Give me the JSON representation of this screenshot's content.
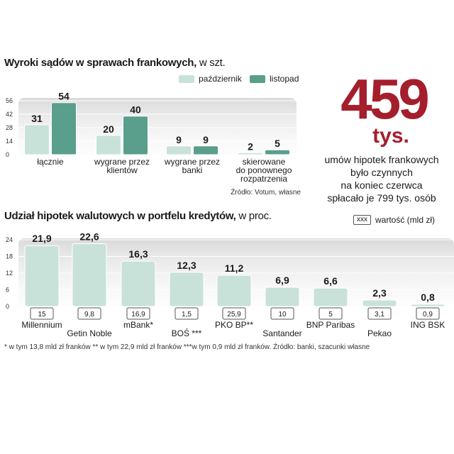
{
  "chart_data": [
    {
      "type": "bar",
      "title": "Wyroki sądów w sprawach frankowych,",
      "unit": "w szt.",
      "categories": [
        [
          "łącznie"
        ],
        [
          "wygrane przez",
          "klientów"
        ],
        [
          "wygrane przez",
          "banki"
        ],
        [
          "skierowane",
          "do ponownego",
          "rozpatrzenia"
        ]
      ],
      "series": [
        {
          "name": "październik",
          "values": [
            31,
            20,
            9,
            2
          ]
        },
        {
          "name": "listopad",
          "values": [
            54,
            40,
            9,
            5
          ]
        }
      ],
      "yticks": [
        0,
        14,
        28,
        42,
        56
      ],
      "ylim": [
        0,
        56
      ],
      "source": "Źródło: Votum, własne",
      "colors": {
        "październik": "#c9e2d9",
        "listopad": "#5a9e8c"
      }
    },
    {
      "type": "bar",
      "title": "Udział hipotek walutowych w portfelu kredytów,",
      "unit": "w proc.",
      "categories": [
        "Millennium",
        "Getin Noble",
        "mBank*",
        "BOŚ ***",
        "PKO BP**",
        "Santander",
        "BNP Paribas",
        "Pekao",
        "ING BSK"
      ],
      "values": [
        21.9,
        22.6,
        16.3,
        12.3,
        11.2,
        6.9,
        6.6,
        2.3,
        0.8
      ],
      "value_labels": [
        "21,9",
        "22,6",
        "16,3",
        "12,3",
        "11,2",
        "6,9",
        "6,6",
        "2,3",
        "0,8"
      ],
      "secondary_labels": [
        "15",
        "9,8",
        "16,9",
        "1,5",
        "25,9",
        "10",
        "5",
        "3,1",
        "0,9"
      ],
      "yticks": [
        0,
        6,
        12,
        18,
        24
      ],
      "ylim": [
        0,
        24
      ],
      "legend_box": "xxx",
      "legend_label": "wartość (mld zł)",
      "colors": {
        "bar": "#c9e2d9"
      }
    }
  ],
  "headline": {
    "number": "459",
    "unit": "tys.",
    "lines": [
      "umów hipotek frankowych",
      "było czynnych",
      "na koniec czerwca",
      "spłacało je 799 tys. osób"
    ]
  },
  "footnote": "* w tym 13,8 mld zł franków ** w tym 22,9 mld zł franków ***w tym 0,9 mld zł franków. Źródło: banki, szacunki własne"
}
